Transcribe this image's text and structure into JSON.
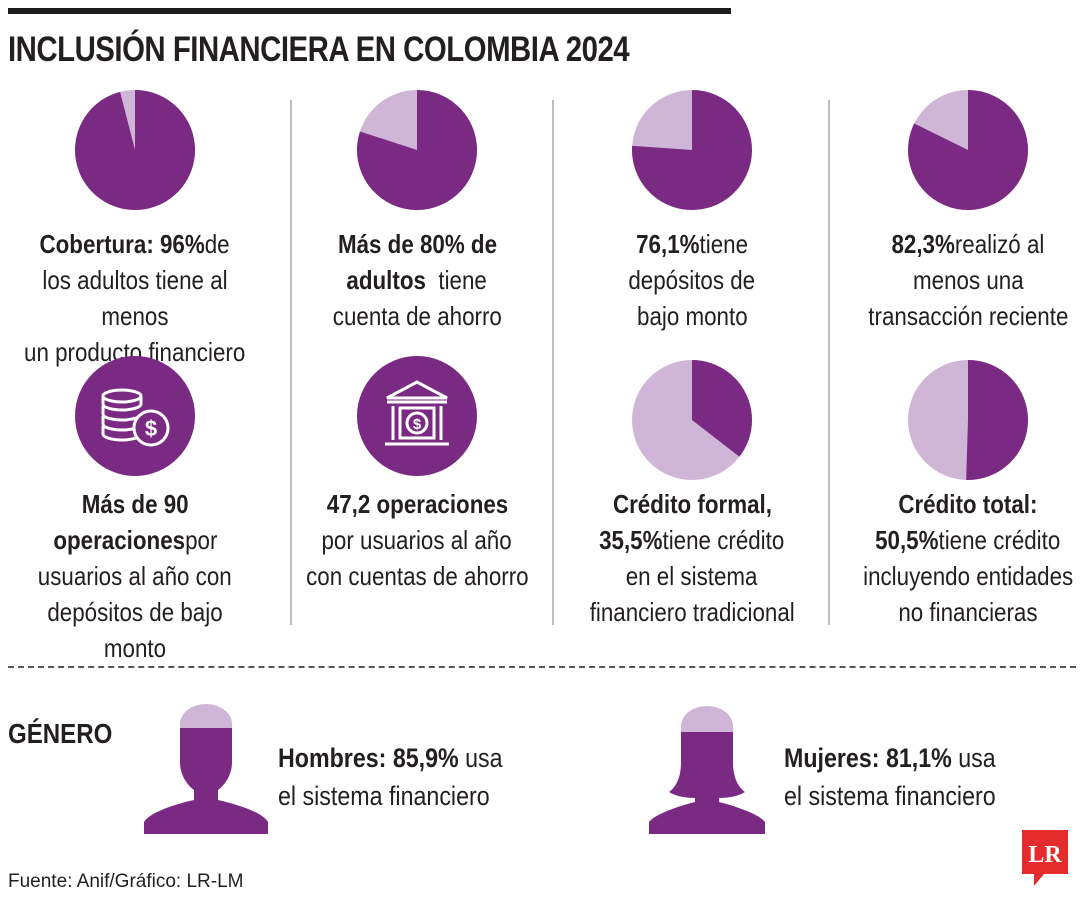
{
  "title": "INCLUSIÓN FINANCIERA EN COLOMBIA 2024",
  "colors": {
    "purple": "#7b2a84",
    "light_purple": "#cfb6d6",
    "text": "#231f20",
    "logo_red": "#e52c2c"
  },
  "chart_data": {
    "type": "pie",
    "title": "INCLUSIÓN FINANCIERA EN COLOMBIA 2024",
    "charts": [
      {
        "id": "cobertura",
        "value": 96
      },
      {
        "id": "ahorro",
        "value": 80
      },
      {
        "id": "depositos",
        "value": 76.1
      },
      {
        "id": "transaccion",
        "value": 82.3
      },
      {
        "id": "credito_formal",
        "value": 35.5
      },
      {
        "id": "credito_total",
        "value": 50.5
      }
    ]
  },
  "cells": {
    "c1": {
      "b1": "Cobertura: 96%",
      "t1": " de",
      "t2": "los adultos tiene al menos",
      "t3": "un producto financiero"
    },
    "c2": {
      "b1": "Más de 80% de",
      "b2": "adultos",
      "t2": "  tiene",
      "t3": "cuenta de ahorro"
    },
    "c3": {
      "b1": "76,1%",
      "t1": " tiene",
      "t2": "depósitos de",
      "t3": "bajo monto"
    },
    "c4": {
      "b1": "82,3%",
      "t1": " realizó al",
      "t2": "menos una",
      "t3": "transacción reciente"
    },
    "c5": {
      "b1": "Más de 90",
      "b2": "operaciones",
      "t2": " por",
      "t3": "usuarios al año con",
      "t4": "depósitos de bajo monto",
      "icon": "coins-dollar-icon"
    },
    "c6": {
      "b1": "47,2 operaciones",
      "t2": "por usuarios al año",
      "t3": "con cuentas de ahorro",
      "icon": "bank-dollar-icon"
    },
    "c7": {
      "b1": "Crédito formal,",
      "b2": "35,5%",
      "t2": " tiene crédito",
      "t3": "en el sistema",
      "t4": "financiero tradicional"
    },
    "c8": {
      "b1": "Crédito total:",
      "b2": "50,5%",
      "t2": " tiene crédito",
      "t3": "incluyendo entidades",
      "t4": "no financieras"
    }
  },
  "gender": {
    "label": "GÉNERO",
    "men": {
      "bold": "Hombres: 85,9%",
      "text1": " usa",
      "text2": "el sistema financiero",
      "value": 85.9,
      "icon": "man-silhouette-icon"
    },
    "women": {
      "bold": "Mujeres: 81,1%",
      "text1": " usa",
      "text2": "el sistema financiero",
      "value": 81.1,
      "icon": "woman-silhouette-icon"
    }
  },
  "source": "Fuente: Anif/Gráfico: LR-LM",
  "logo": {
    "text": "LR"
  }
}
